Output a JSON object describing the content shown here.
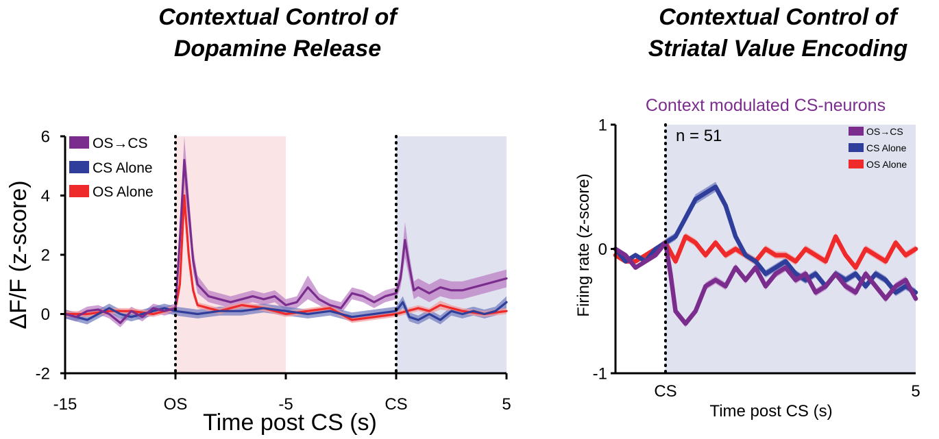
{
  "colors": {
    "os_cs": "#7B2D8E",
    "os_cs_band": "#B97BC2",
    "cs_alone": "#2E3E9A",
    "cs_alone_band": "#6E79BE",
    "os_alone": "#EE2A2A",
    "os_alone_band": "#F49A9A",
    "pink_shade": "#FBE4E6",
    "lavender_shade": "#E1E2EF",
    "subtitle": "#7B2D8E"
  },
  "chart_data": [
    {
      "type": "line",
      "title_line1": "Contextual Control of",
      "title_line2": "Dopamine Release",
      "xlabel": "Time post CS (s)",
      "ylabel": "ΔF/F  (z-score)",
      "xlim": [
        -15,
        5
      ],
      "ylim": [
        -2,
        6
      ],
      "yticks": [
        {
          "value": 6,
          "label": "6"
        },
        {
          "value": 4,
          "label": "4"
        },
        {
          "value": 2,
          "label": "2"
        },
        {
          "value": 0,
          "label": "0"
        },
        {
          "value": -2,
          "label": "-2"
        }
      ],
      "xticks": [
        {
          "value": -15,
          "label": "-15"
        },
        {
          "value": -10,
          "label": "OS"
        },
        {
          "value": -5,
          "label": "-5"
        },
        {
          "value": 0,
          "label": "CS"
        },
        {
          "value": 5,
          "label": "5"
        }
      ],
      "vlines": [
        -10,
        0
      ],
      "shaded": [
        {
          "from": -10,
          "to": -5,
          "color_key": "pink_shade"
        },
        {
          "from": 0,
          "to": 5,
          "color_key": "lavender_shade"
        }
      ],
      "legend": [
        "OS→CS",
        "CS Alone",
        "OS Alone"
      ],
      "legend_position": "top-left",
      "series": [
        {
          "name": "OS→CS",
          "color_key": "os_cs",
          "band_key": "os_cs_band",
          "x": [
            -15,
            -14.5,
            -14,
            -13.5,
            -13,
            -12.5,
            -12,
            -11.5,
            -11,
            -10.5,
            -10,
            -9.8,
            -9.6,
            -9.4,
            -9.2,
            -9,
            -8.5,
            -8,
            -7.5,
            -7,
            -6.5,
            -6,
            -5.5,
            -5,
            -4.5,
            -4,
            -3.5,
            -3,
            -2.5,
            -2,
            -1.5,
            -1,
            -0.5,
            0,
            0.2,
            0.4,
            0.6,
            0.8,
            1,
            1.5,
            2,
            2.5,
            3,
            3.5,
            4,
            4.5,
            5
          ],
          "y": [
            0,
            -0.1,
            0.1,
            0.15,
            0,
            -0.3,
            0.1,
            -0.1,
            0.2,
            0.1,
            0.2,
            2.5,
            5.2,
            3.5,
            1.8,
            1.0,
            0.6,
            0.5,
            0.4,
            0.5,
            0.6,
            0.5,
            0.6,
            0.3,
            0.4,
            0.9,
            0.5,
            0.3,
            0.2,
            0.7,
            0.6,
            0.4,
            0.6,
            0.7,
            1.2,
            2.5,
            1.6,
            0.8,
            0.9,
            0.7,
            0.9,
            0.8,
            0.8,
            0.9,
            1.0,
            1.1,
            1.2
          ],
          "err": [
            0.15,
            0.15,
            0.15,
            0.15,
            0.15,
            0.15,
            0.15,
            0.15,
            0.15,
            0.15,
            0.15,
            0.5,
            0.8,
            0.6,
            0.4,
            0.3,
            0.2,
            0.2,
            0.2,
            0.2,
            0.2,
            0.2,
            0.2,
            0.2,
            0.2,
            0.4,
            0.2,
            0.2,
            0.2,
            0.2,
            0.2,
            0.2,
            0.2,
            0.2,
            0.3,
            0.6,
            0.4,
            0.3,
            0.3,
            0.3,
            0.3,
            0.3,
            0.3,
            0.3,
            0.3,
            0.3,
            0.3
          ]
        },
        {
          "name": "CS Alone",
          "color_key": "cs_alone",
          "band_key": "cs_alone_band",
          "x": [
            -15,
            -14,
            -13,
            -12.5,
            -12,
            -11,
            -10.5,
            -10,
            -9,
            -8,
            -7,
            -6,
            -5,
            -4,
            -3,
            -2,
            -1,
            0,
            0.3,
            0.6,
            1,
            1.5,
            2,
            2.5,
            3,
            3.5,
            4,
            4.5,
            5
          ],
          "y": [
            0,
            -0.2,
            0.2,
            0,
            -0.1,
            0.1,
            0.2,
            0.1,
            0.0,
            0.1,
            0.1,
            0.2,
            0.1,
            0.0,
            0.1,
            -0.1,
            0.0,
            0.1,
            0.4,
            -0.1,
            -0.2,
            0.0,
            -0.2,
            0.1,
            0.0,
            0.1,
            0.0,
            0.1,
            0.4
          ],
          "err": [
            0.15,
            0.15,
            0.15,
            0.15,
            0.15,
            0.15,
            0.15,
            0.15,
            0.15,
            0.15,
            0.15,
            0.15,
            0.15,
            0.15,
            0.15,
            0.15,
            0.15,
            0.15,
            0.2,
            0.15,
            0.15,
            0.15,
            0.15,
            0.15,
            0.15,
            0.15,
            0.15,
            0.15,
            0.2
          ]
        },
        {
          "name": "OS Alone",
          "color_key": "os_alone",
          "band_key": "os_alone_band",
          "x": [
            -15,
            -14,
            -13,
            -12,
            -11,
            -10.5,
            -10,
            -9.8,
            -9.6,
            -9.4,
            -9.2,
            -9,
            -8.5,
            -8,
            -7,
            -6,
            -5,
            -4,
            -3,
            -2,
            -1,
            0,
            0.5,
            1,
            1.5,
            2,
            2.5,
            3,
            4,
            5
          ],
          "y": [
            0,
            0,
            0.1,
            0.1,
            0.0,
            0.1,
            0.2,
            1.0,
            4.0,
            2.0,
            0.8,
            0.3,
            0.2,
            0.1,
            0.3,
            0.2,
            0.0,
            0.1,
            0.2,
            -0.2,
            -0.1,
            0.0,
            0.1,
            0.2,
            0.1,
            0.3,
            0.2,
            0.1,
            0.0,
            0.1
          ],
          "err": [
            0.1,
            0.1,
            0.1,
            0.1,
            0.1,
            0.1,
            0.1,
            0.3,
            0.6,
            0.4,
            0.2,
            0.1,
            0.1,
            0.1,
            0.1,
            0.1,
            0.1,
            0.1,
            0.1,
            0.1,
            0.1,
            0.1,
            0.1,
            0.1,
            0.1,
            0.15,
            0.1,
            0.1,
            0.1,
            0.1
          ]
        }
      ]
    },
    {
      "type": "line",
      "title_line1": "Contextual Control of",
      "title_line2": "Striatal Value Encoding",
      "subtitle": "Context modulated CS-neurons",
      "annotation": "n = 51",
      "xlabel": "Time post CS (s)",
      "ylabel": "Firing rate (z-score)",
      "xlim": [
        -1,
        5
      ],
      "ylim": [
        -1,
        1
      ],
      "yticks": [
        {
          "value": 1,
          "label": "1"
        },
        {
          "value": 0,
          "label": "0"
        },
        {
          "value": -1,
          "label": "-1"
        }
      ],
      "xticks": [
        {
          "value": 0,
          "label": "CS"
        },
        {
          "value": 5,
          "label": "5"
        }
      ],
      "vlines": [
        0
      ],
      "shaded": [
        {
          "from": 0,
          "to": 5,
          "color_key": "lavender_shade"
        }
      ],
      "legend": [
        "OS→CS",
        "CS Alone",
        "OS Alone"
      ],
      "legend_position": "top-right",
      "series": [
        {
          "name": "OS→CS",
          "color_key": "os_cs",
          "band_key": "os_cs_band",
          "x": [
            -1,
            -0.8,
            -0.6,
            -0.4,
            -0.2,
            -0.1,
            0,
            0.1,
            0.2,
            0.4,
            0.6,
            0.8,
            1.0,
            1.2,
            1.4,
            1.6,
            1.8,
            2.0,
            2.2,
            2.4,
            2.6,
            2.8,
            3.0,
            3.2,
            3.4,
            3.6,
            3.8,
            4.0,
            4.2,
            4.4,
            4.6,
            4.8,
            5
          ],
          "y": [
            0,
            -0.05,
            -0.15,
            -0.1,
            -0.05,
            0,
            0.05,
            -0.2,
            -0.5,
            -0.6,
            -0.5,
            -0.3,
            -0.25,
            -0.3,
            -0.15,
            -0.25,
            -0.15,
            -0.3,
            -0.2,
            -0.15,
            -0.25,
            -0.2,
            -0.35,
            -0.3,
            -0.2,
            -0.3,
            -0.35,
            -0.2,
            -0.3,
            -0.4,
            -0.3,
            -0.25,
            -0.4
          ],
          "err": [
            0.02,
            0.02,
            0.02,
            0.02,
            0.02,
            0.02,
            0.03,
            0.03,
            0.03,
            0.03,
            0.03,
            0.03,
            0.03,
            0.03,
            0.03,
            0.03,
            0.03,
            0.03,
            0.03,
            0.03,
            0.03,
            0.03,
            0.03,
            0.03,
            0.03,
            0.03,
            0.03,
            0.03,
            0.03,
            0.03,
            0.03,
            0.03,
            0.03
          ]
        },
        {
          "name": "CS Alone",
          "color_key": "cs_alone",
          "band_key": "cs_alone_band",
          "x": [
            -1,
            -0.8,
            -0.6,
            -0.4,
            -0.2,
            0,
            0.2,
            0.4,
            0.6,
            0.8,
            1.0,
            1.2,
            1.4,
            1.6,
            1.8,
            2.0,
            2.2,
            2.4,
            2.6,
            2.8,
            3.0,
            3.2,
            3.4,
            3.6,
            3.8,
            4.0,
            4.2,
            4.4,
            4.6,
            4.8,
            5
          ],
          "y": [
            0,
            -0.1,
            -0.05,
            -0.1,
            0,
            0.05,
            0.1,
            0.25,
            0.4,
            0.45,
            0.5,
            0.35,
            0.1,
            -0.05,
            -0.1,
            -0.2,
            -0.15,
            -0.1,
            -0.2,
            -0.25,
            -0.2,
            -0.3,
            -0.2,
            -0.25,
            -0.2,
            -0.3,
            -0.2,
            -0.25,
            -0.35,
            -0.3,
            -0.35
          ],
          "err": [
            0.02,
            0.02,
            0.02,
            0.02,
            0.02,
            0.03,
            0.03,
            0.04,
            0.04,
            0.04,
            0.04,
            0.04,
            0.03,
            0.03,
            0.03,
            0.03,
            0.03,
            0.03,
            0.03,
            0.03,
            0.03,
            0.03,
            0.03,
            0.03,
            0.03,
            0.03,
            0.03,
            0.03,
            0.03,
            0.03,
            0.03
          ]
        },
        {
          "name": "OS Alone",
          "color_key": "os_alone",
          "band_key": "os_alone_band",
          "x": [
            -1,
            -0.8,
            -0.6,
            -0.4,
            -0.2,
            0,
            0.2,
            0.4,
            0.6,
            0.8,
            1.0,
            1.2,
            1.4,
            1.6,
            1.8,
            2.0,
            2.2,
            2.4,
            2.6,
            2.8,
            3.0,
            3.2,
            3.4,
            3.6,
            3.8,
            4.0,
            4.2,
            4.4,
            4.6,
            4.8,
            5
          ],
          "y": [
            -0.05,
            -0.1,
            -0.1,
            -0.05,
            0,
            0.05,
            -0.1,
            0.1,
            0.05,
            -0.05,
            0.05,
            -0.05,
            0,
            -0.05,
            -0.1,
            0,
            -0.05,
            -0.05,
            -0.1,
            0,
            -0.05,
            -0.1,
            0.1,
            -0.05,
            -0.15,
            0,
            -0.05,
            -0.1,
            0.05,
            -0.05,
            0
          ],
          "err": [
            0.02,
            0.02,
            0.02,
            0.02,
            0.02,
            0.03,
            0.03,
            0.03,
            0.03,
            0.03,
            0.03,
            0.03,
            0.03,
            0.03,
            0.03,
            0.03,
            0.03,
            0.03,
            0.03,
            0.03,
            0.03,
            0.03,
            0.03,
            0.03,
            0.03,
            0.03,
            0.03,
            0.03,
            0.03,
            0.03,
            0.03
          ]
        }
      ]
    }
  ]
}
